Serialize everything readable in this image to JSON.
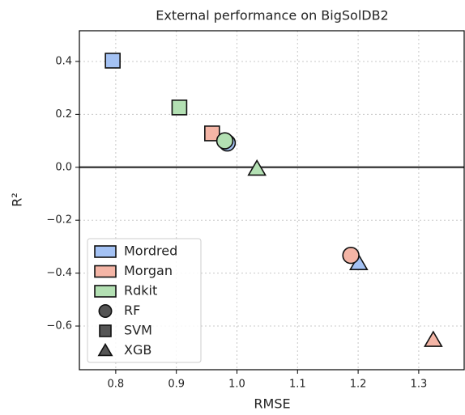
{
  "chart_data": {
    "type": "scatter",
    "title": "External performance on BigSolDB2",
    "x_label": "RMSE",
    "y_label": "R²",
    "xlim": [
      0.74,
      1.375
    ],
    "ylim": [
      -0.765,
      0.516
    ],
    "xticks": [
      0.8,
      0.9,
      {
        "value": 1,
        "label": "1.0"
      },
      1.1,
      1.2,
      1.3
    ],
    "yticks": [
      {
        "value": -0.6,
        "label": "−0.6"
      },
      {
        "value": -0.4,
        "label": "−0.4"
      },
      {
        "value": -0.2,
        "label": "−0.2"
      },
      {
        "value": 0,
        "label": "0.0"
      },
      0.2,
      0.4
    ],
    "grid": true,
    "hline": 0,
    "legend": "lower left",
    "models": [
      {
        "name": "RF",
        "marker": "circle"
      },
      {
        "name": "SVM",
        "marker": "square"
      },
      {
        "name": "XGB",
        "marker": "triangle"
      }
    ],
    "model_color": "#555555",
    "series": [
      {
        "name": "Mordred",
        "color": "#a4c2f4",
        "x": [
          0.984,
          0.795,
          1.201
        ],
        "values": [
          0.092,
          0.403,
          -0.363
        ]
      },
      {
        "name": "Morgan",
        "color": "#f4b5a6",
        "x": [
          1.188,
          0.959,
          1.324
        ],
        "values": [
          -0.333,
          0.128,
          -0.653
        ]
      },
      {
        "name": "Rdkit",
        "color": "#b3e0b3",
        "x": [
          0.98,
          0.905,
          1.033
        ],
        "values": [
          0.1,
          0.226,
          -0.006
        ]
      }
    ]
  }
}
